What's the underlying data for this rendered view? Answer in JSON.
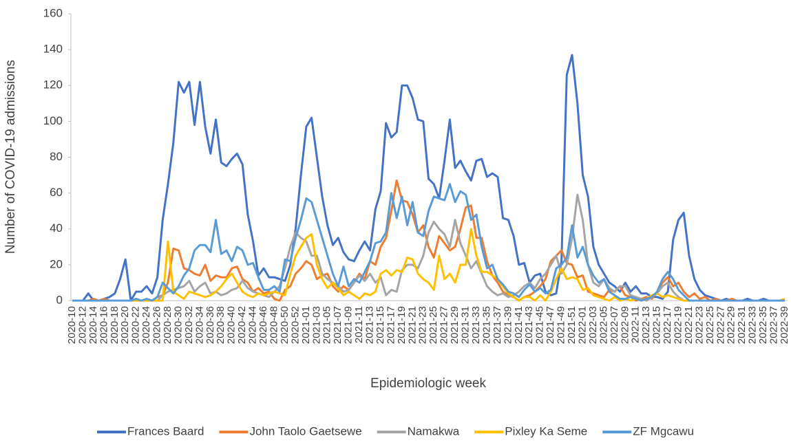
{
  "chart_data": {
    "type": "line",
    "y_label": "Number of COVID-19 admissions",
    "x_label": "Epidemiologic week",
    "ylim": [
      0,
      160
    ],
    "yticks": [
      0,
      20,
      40,
      60,
      80,
      100,
      120,
      140,
      160
    ],
    "categories": [
      "2020-10",
      null,
      "2020-12",
      null,
      "2020-14",
      null,
      "2020-16",
      null,
      "2020-18",
      null,
      "2020-20",
      null,
      "2020-22",
      null,
      "2020-24",
      null,
      "2020-26",
      null,
      "2020-28",
      null,
      "2020-30",
      null,
      "2020-32",
      null,
      "2020-34",
      null,
      "2020-36",
      null,
      "2020-38",
      null,
      "2020-40",
      null,
      "2020-42",
      null,
      "2020-44",
      null,
      "2020-46",
      null,
      "2020-48",
      null,
      "2020-50",
      null,
      "2020-52",
      null,
      "2021-01",
      null,
      "2021-03",
      null,
      "2021-05",
      null,
      "2021-07",
      null,
      "2021-09",
      null,
      "2021-11",
      null,
      "2021-13",
      null,
      "2021-15",
      null,
      "2021-17",
      null,
      "2021-19",
      null,
      "2021-21",
      null,
      "2021-23",
      null,
      "2021-25",
      null,
      "2021-27",
      null,
      "2021-29",
      null,
      "2021-31",
      null,
      "2021-33",
      null,
      "2021-35",
      null,
      "2021-37",
      null,
      "2021-39",
      null,
      "2021-41",
      null,
      "2021-43",
      null,
      "2021-45",
      null,
      "2021-47",
      null,
      "2021-49",
      null,
      "2021-51",
      null,
      "2022-01",
      null,
      "2022-03",
      null,
      "2022-05",
      null,
      "2022-07",
      null,
      "2022-09",
      null,
      "2022-11",
      null,
      "2022-13",
      null,
      "2022-15",
      null,
      "2022-17",
      null,
      "2022-19",
      null,
      "2022-21",
      null,
      "2022-23",
      null,
      "2022-25",
      null,
      "2022-27",
      null,
      "2022-29",
      null,
      "2022-31",
      null,
      "2022-33",
      null,
      "2022-35",
      null,
      "2022-37",
      null,
      "2022-39"
    ],
    "series": [
      {
        "name": "Frances Baard",
        "color": "#4472c4",
        "values": [
          0,
          0,
          0,
          4,
          0,
          0,
          1,
          2,
          4,
          12,
          23,
          0,
          5,
          5,
          8,
          4,
          13,
          45,
          65,
          88,
          122,
          116,
          122,
          98,
          122,
          97,
          82,
          101,
          77,
          75,
          79,
          82,
          76,
          48,
          33,
          14,
          18,
          13,
          13,
          12,
          11,
          20,
          40,
          70,
          97,
          102,
          80,
          58,
          42,
          31,
          35,
          27,
          23,
          22,
          28,
          33,
          28,
          51,
          61,
          99,
          91,
          94,
          120,
          120,
          113,
          101,
          100,
          68,
          65,
          57,
          78,
          101,
          74,
          78,
          72,
          67,
          78,
          79,
          69,
          71,
          69,
          46,
          45,
          36,
          20,
          21,
          10,
          14,
          15,
          5,
          3,
          4,
          22,
          126,
          137,
          110,
          70,
          58,
          30,
          20,
          15,
          10,
          8,
          5,
          10,
          5,
          8,
          4,
          4,
          2,
          2,
          1,
          5,
          34,
          45,
          49,
          25,
          12,
          6,
          3,
          2,
          1,
          0,
          1,
          0,
          0,
          0,
          1,
          0,
          0,
          1,
          0,
          0,
          0,
          0
        ]
      },
      {
        "name": "John Taolo Gaetsewe",
        "color": "#ed7d31",
        "values": [
          0,
          0,
          0,
          0,
          1,
          0,
          1,
          0,
          0,
          0,
          0,
          0,
          0,
          0,
          0,
          0,
          2,
          3,
          10,
          29,
          28,
          18,
          17,
          15,
          14,
          20,
          11,
          14,
          13,
          13,
          18,
          19,
          12,
          10,
          5,
          7,
          4,
          5,
          1,
          0,
          6,
          8,
          15,
          18,
          22,
          20,
          12,
          14,
          15,
          8,
          5,
          8,
          6,
          10,
          15,
          12,
          22,
          20,
          30,
          35,
          50,
          67,
          56,
          55,
          48,
          38,
          42,
          30,
          24,
          36,
          32,
          28,
          30,
          40,
          52,
          53,
          35,
          35,
          22,
          14,
          10,
          5,
          3,
          2,
          0,
          2,
          3,
          5,
          8,
          12,
          22,
          25,
          28,
          21,
          20,
          13,
          14,
          5,
          4,
          3,
          2,
          6,
          5,
          8,
          3,
          2,
          0,
          1,
          2,
          1,
          5,
          10,
          13,
          8,
          10,
          5,
          2,
          4,
          1,
          2,
          0,
          1,
          0,
          0,
          1,
          0,
          0,
          0,
          0,
          0,
          0,
          0,
          0,
          0,
          0
        ]
      },
      {
        "name": "Namakwa",
        "color": "#a5a5a5",
        "values": [
          0,
          0,
          0,
          0,
          0,
          0,
          0,
          0,
          0,
          0,
          0,
          0,
          0,
          0,
          0,
          0,
          0,
          3,
          5,
          6,
          7,
          8,
          11,
          5,
          8,
          10,
          4,
          5,
          3,
          4,
          6,
          7,
          11,
          7,
          5,
          4,
          3,
          2,
          5,
          8,
          18,
          30,
          38,
          35,
          33,
          25,
          25,
          15,
          12,
          10,
          8,
          5,
          6,
          10,
          14,
          11,
          15,
          10,
          13,
          3,
          6,
          5,
          17,
          20,
          20,
          18,
          25,
          38,
          44,
          40,
          37,
          30,
          45,
          32,
          25,
          18,
          22,
          15,
          8,
          5,
          3,
          4,
          2,
          3,
          5,
          8,
          10,
          7,
          12,
          15,
          20,
          25,
          15,
          20,
          35,
          59,
          45,
          20,
          10,
          8,
          12,
          7,
          5,
          8,
          8,
          3,
          2,
          1,
          0,
          2,
          4,
          8,
          10,
          5,
          2,
          0,
          0,
          0,
          0,
          0,
          0,
          0,
          0,
          0,
          0,
          0,
          0,
          0,
          0,
          0,
          0,
          0,
          0,
          0,
          0
        ]
      },
      {
        "name": "Pixley Ka Seme",
        "color": "#ffc000",
        "values": [
          0,
          0,
          0,
          0,
          0,
          0,
          0,
          0,
          0,
          0,
          0,
          0,
          0,
          0,
          0,
          0,
          0,
          0,
          33,
          5,
          3,
          1,
          5,
          4,
          3,
          2,
          3,
          5,
          8,
          12,
          15,
          10,
          5,
          3,
          2,
          4,
          3,
          4,
          5,
          4,
          3,
          15,
          25,
          30,
          35,
          37,
          20,
          12,
          7,
          10,
          7,
          3,
          5,
          3,
          1,
          4,
          3,
          5,
          15,
          17,
          14,
          17,
          16,
          24,
          23,
          15,
          12,
          10,
          6,
          25,
          12,
          15,
          10,
          20,
          20,
          40,
          25,
          16,
          16,
          14,
          12,
          8,
          4,
          2,
          0,
          2,
          2,
          0,
          3,
          0,
          5,
          12,
          18,
          12,
          13,
          12,
          6,
          7,
          3,
          2,
          1,
          0,
          2,
          0,
          1,
          0,
          1,
          0,
          1,
          3,
          4,
          2,
          3,
          2,
          1,
          0,
          0,
          0,
          0,
          0,
          0,
          0,
          0,
          0,
          0,
          0,
          0,
          0,
          0,
          0,
          0,
          0,
          0,
          0,
          1
        ]
      },
      {
        "name": "ZF Mgcawu",
        "color": "#5b9bd5",
        "values": [
          0,
          0,
          0,
          0,
          0,
          0,
          0,
          0,
          0,
          0,
          0,
          0,
          1,
          0,
          1,
          0,
          2,
          10,
          7,
          4,
          8,
          14,
          18,
          28,
          31,
          31,
          27,
          45,
          26,
          28,
          22,
          30,
          28,
          20,
          21,
          13,
          6,
          6,
          8,
          5,
          23,
          22,
          35,
          45,
          57,
          55,
          45,
          35,
          25,
          15,
          8,
          19,
          8,
          12,
          10,
          16,
          22,
          32,
          33,
          38,
          60,
          46,
          58,
          42,
          55,
          38,
          36,
          50,
          58,
          57,
          56,
          65,
          55,
          61,
          59,
          45,
          48,
          30,
          18,
          20,
          12,
          9,
          5,
          4,
          2,
          6,
          9,
          5,
          7,
          4,
          6,
          18,
          20,
          24,
          42,
          24,
          30,
          20,
          14,
          10,
          12,
          5,
          3,
          1,
          1,
          2,
          1,
          0,
          1,
          2,
          5,
          12,
          16,
          12,
          6,
          3,
          0,
          0,
          0,
          0,
          0,
          0,
          0,
          0,
          0,
          0,
          0,
          0,
          0,
          0,
          0,
          0,
          0,
          0,
          0
        ]
      }
    ],
    "legend": "bottom"
  }
}
